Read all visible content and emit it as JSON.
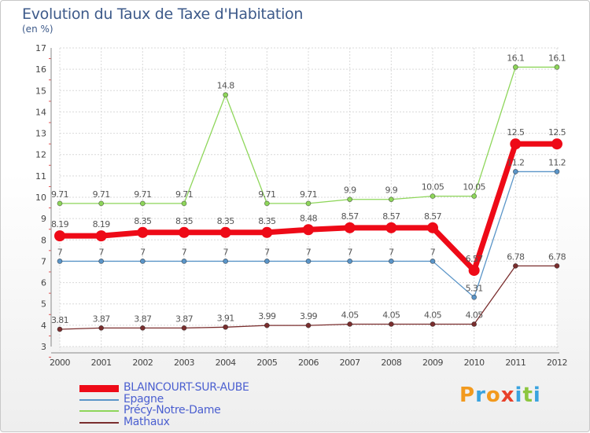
{
  "title": "Evolution du Taux de Taxe d'Habitation",
  "unit_label": "(en %)",
  "logo": {
    "text": "Proxiti",
    "letters": [
      {
        "ch": "P",
        "color": "#f29a1e"
      },
      {
        "ch": "r",
        "color": "#3aa3df"
      },
      {
        "ch": "o",
        "color": "#f29a1e"
      },
      {
        "ch": "x",
        "color": "#e8402a"
      },
      {
        "ch": "i",
        "color": "#3aa3df"
      },
      {
        "ch": "t",
        "color": "#8cc63f"
      },
      {
        "ch": "i",
        "color": "#3aa3df"
      }
    ]
  },
  "chart_data": {
    "type": "line",
    "x": [
      2000,
      2001,
      2002,
      2003,
      2004,
      2005,
      2006,
      2007,
      2008,
      2009,
      2010,
      2011,
      2012
    ],
    "ylim": [
      3,
      17
    ],
    "yticks": [
      3,
      4,
      5,
      6,
      7,
      8,
      9,
      10,
      11,
      12,
      13,
      14,
      15,
      16,
      17
    ],
    "grid": true,
    "legend_position": "bottom-left",
    "series": [
      {
        "name": "Mathaux",
        "color": "#7a2e2e",
        "values": [
          3.81,
          3.87,
          3.87,
          3.87,
          3.91,
          3.99,
          3.99,
          4.05,
          4.05,
          4.05,
          4.05,
          6.78,
          6.78
        ],
        "labels": [
          "3.81",
          "3.87",
          "3.87",
          "3.87",
          "3.91",
          "3.99",
          "3.99",
          "4.05",
          "4.05",
          "4.05",
          "4.05",
          "6.78",
          "6.78"
        ]
      },
      {
        "name": "Précy-Notre-Dame",
        "color": "#8ed65a",
        "values": [
          9.71,
          9.71,
          9.71,
          9.71,
          14.8,
          9.71,
          9.71,
          9.9,
          9.9,
          10.05,
          10.05,
          16.1,
          16.1
        ],
        "labels": [
          "9.71",
          "9.71",
          "9.71",
          "9.71",
          "14.8",
          "9.71",
          "9.71",
          "9.9",
          "9.9",
          "10.05",
          "10.05",
          "16.1",
          "16.1"
        ]
      },
      {
        "name": "Epagne",
        "color": "#5b95c8",
        "values": [
          7,
          7,
          7,
          7,
          7,
          7,
          7,
          7,
          7,
          7,
          5.31,
          11.2,
          11.2
        ],
        "labels": [
          "7",
          "7",
          "7",
          "7",
          "7",
          "7",
          "7",
          "7",
          "7",
          "7",
          "5.31",
          "11.2",
          "11.2"
        ]
      },
      {
        "name": "BLAINCOURT-SUR-AUBE",
        "color": "#ee0a17",
        "values": [
          8.19,
          8.19,
          8.35,
          8.35,
          8.35,
          8.35,
          8.48,
          8.57,
          8.57,
          8.57,
          6.57,
          12.5,
          12.5
        ],
        "labels": [
          "8.19",
          "8.19",
          "8.35",
          "8.35",
          "8.35",
          "8.35",
          "8.48",
          "8.57",
          "8.57",
          "8.57",
          "6.57",
          "12.5",
          "12.5"
        ]
      }
    ],
    "legend": [
      "BLAINCOURT-SUR-AUBE",
      "Epagne",
      "Précy-Notre-Dame",
      "Mathaux"
    ]
  }
}
